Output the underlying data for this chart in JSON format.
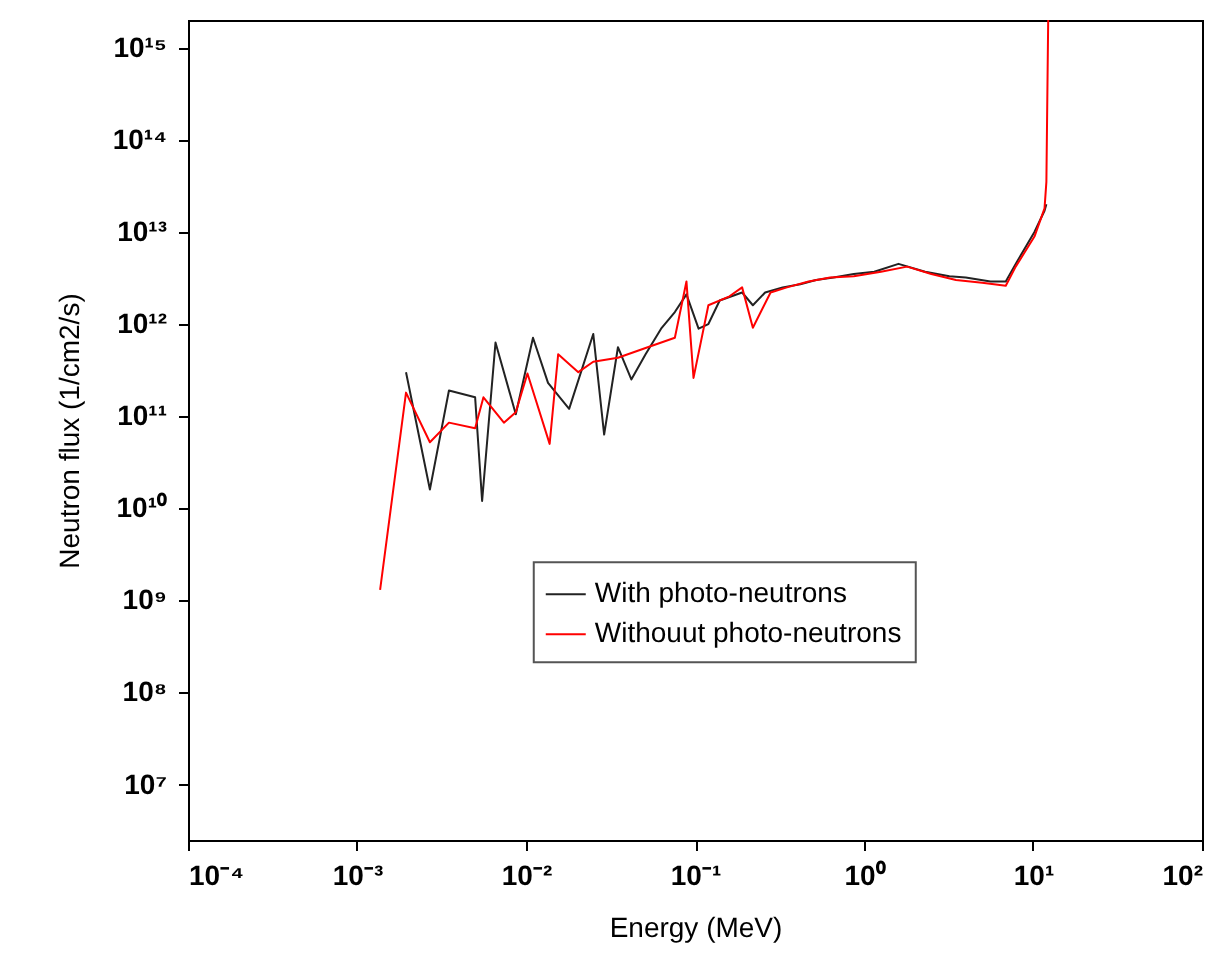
{
  "chart_data": {
    "type": "line",
    "xlabel": "Energy (MeV)",
    "ylabel": "Neutron flux (1/cm2/s)",
    "log": "xy",
    "grid": false,
    "legend": "bottom",
    "marker": "none",
    "line_style": "solid",
    "xlim": [
      0.0001,
      100
    ],
    "ylim": [
      2500000,
      2000000000000000
    ],
    "xticks": [
      {
        "value": 0.0001,
        "label": "10⁻⁴"
      },
      {
        "value": 0.001,
        "label": "10⁻³"
      },
      {
        "value": 0.01,
        "label": "10⁻²"
      },
      {
        "value": 0.1,
        "label": "10⁻¹"
      },
      {
        "value": 1,
        "label": "10⁰"
      },
      {
        "value": 10,
        "label": "10¹"
      },
      {
        "value": 100,
        "label": "10²"
      }
    ],
    "yticks": [
      {
        "value": 10000000,
        "label": "10⁷"
      },
      {
        "value": 100000000,
        "label": "10⁸"
      },
      {
        "value": 1000000000,
        "label": "10⁹"
      },
      {
        "value": 10000000000,
        "label": "10¹⁰"
      },
      {
        "value": 100000000000,
        "label": "10¹¹"
      },
      {
        "value": 1000000000000,
        "label": "10¹²"
      },
      {
        "value": 10000000000000,
        "label": "10¹³"
      },
      {
        "value": 100000000000000,
        "label": "10¹⁴"
      },
      {
        "value": 1000000000000000,
        "label": "10¹⁵"
      }
    ],
    "series": [
      {
        "name": "With photo-neutrons",
        "color": "#222222",
        "x": [
          0.00195,
          0.0027,
          0.0035,
          0.005,
          0.0055,
          0.0066,
          0.0087,
          0.011,
          0.0135,
          0.018,
          0.025,
          0.029,
          0.035,
          0.042,
          0.051,
          0.063,
          0.076,
          0.089,
          0.105,
          0.12,
          0.14,
          0.19,
          0.22,
          0.26,
          0.33,
          0.42,
          0.52,
          0.66,
          0.87,
          1.15,
          1.6,
          2.3,
          3.2,
          4.0,
          5.6,
          6.9,
          7.9,
          10.2,
          11.7,
          12.0
        ],
        "values": [
          300000000000,
          16000000000,
          190000000000,
          160000000000,
          12000000000,
          630000000000,
          105000000000,
          710000000000,
          230000000000,
          120000000000,
          780000000000,
          63000000000,
          560000000000,
          250000000000,
          470000000000,
          890000000000,
          1350000000000,
          2100000000000,
          890000000000,
          1000000000000,
          1800000000000,
          2200000000000,
          1600000000000,
          2200000000000,
          2500000000000,
          2700000000000,
          3000000000000,
          3200000000000,
          3500000000000,
          3700000000000,
          4500000000000,
          3700000000000,
          3300000000000,
          3200000000000,
          2900000000000,
          2900000000000,
          4500000000000,
          10000000000000,
          17000000000000,
          20000000000000
        ]
      },
      {
        "name": "Withouut photo-neutrons",
        "color": "#ff0000",
        "x": [
          0.00137,
          0.00195,
          0.0027,
          0.0035,
          0.005,
          0.0056,
          0.0074,
          0.0087,
          0.0102,
          0.0138,
          0.0155,
          0.0204,
          0.025,
          0.035,
          0.051,
          0.076,
          0.089,
          0.098,
          0.12,
          0.16,
          0.19,
          0.22,
          0.28,
          0.35,
          0.47,
          0.63,
          0.87,
          1.26,
          1.8,
          2.5,
          3.5,
          5.0,
          6.9,
          7.9,
          10.2,
          11.7,
          12.0,
          12.3
        ],
        "values": [
          1300000000,
          180000000000,
          52000000000,
          85000000000,
          74000000000,
          160000000000,
          85000000000,
          110000000000,
          290000000000,
          50000000000,
          470000000000,
          300000000000,
          390000000000,
          430000000000,
          550000000000,
          710000000000,
          2900000000000,
          260000000000,
          1600000000000,
          2000000000000,
          2500000000000,
          910000000000,
          2200000000000,
          2500000000000,
          2900000000000,
          3200000000000,
          3300000000000,
          3700000000000,
          4200000000000,
          3500000000000,
          3000000000000,
          2800000000000,
          2600000000000,
          4200000000000,
          8900000000000,
          18000000000000,
          35000000000000,
          2000000000000000
        ]
      }
    ]
  }
}
